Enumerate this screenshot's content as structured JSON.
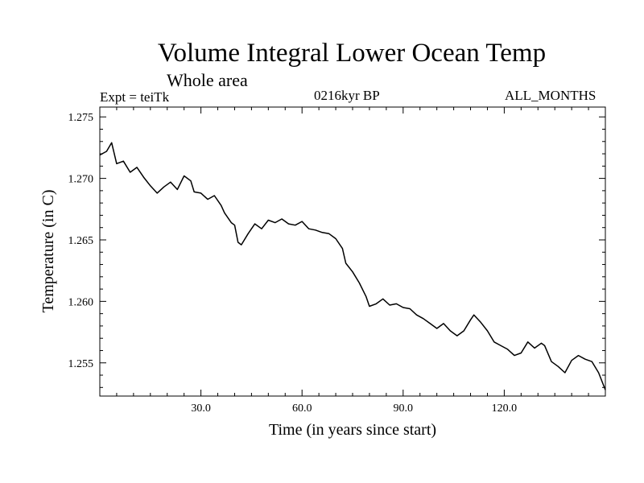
{
  "chart_data": {
    "type": "line",
    "title": "Volume Integral Lower Ocean Temp",
    "subtitle": "Whole area",
    "annotations": {
      "left": "Expt = teiTk",
      "center": "0216kyr BP",
      "right": "ALL_MONTHS"
    },
    "xlabel": "Time (in years since start)",
    "ylabel": "Temperature (in C)",
    "xlim": [
      0,
      150
    ],
    "ylim": [
      1.2523,
      1.2758
    ],
    "xticks": [
      30,
      60,
      90,
      120
    ],
    "xtick_labels": [
      "30.0",
      "60.0",
      "90.0",
      "120.0"
    ],
    "yticks": [
      1.255,
      1.26,
      1.265,
      1.27,
      1.275
    ],
    "ytick_labels": [
      "1.255",
      "1.260",
      "1.265",
      "1.270",
      "1.275"
    ],
    "grid": false,
    "series": [
      {
        "name": "Temperature",
        "color": "#000000",
        "x": [
          0,
          2,
          3.5,
          5,
          7,
          9,
          11,
          13,
          15,
          17,
          19,
          21,
          23,
          25,
          27,
          28,
          30,
          32,
          34,
          36,
          37,
          39,
          40,
          41,
          42,
          44,
          46,
          48,
          50,
          52,
          54,
          56,
          58,
          60,
          62,
          64,
          66,
          68,
          70,
          72,
          73,
          75,
          77,
          79,
          80,
          82,
          84,
          86,
          88,
          90,
          92,
          94,
          96,
          98,
          100,
          102,
          104,
          106,
          108,
          110,
          111,
          113,
          115,
          117,
          119,
          121,
          123,
          125,
          127,
          129,
          131,
          132,
          134,
          136,
          138,
          140,
          142,
          144,
          146,
          148,
          150
        ],
        "y": [
          1.2719,
          1.2722,
          1.2729,
          1.2712,
          1.2714,
          1.2705,
          1.2709,
          1.2701,
          1.2694,
          1.2688,
          1.2693,
          1.2697,
          1.2691,
          1.2702,
          1.2698,
          1.2689,
          1.2688,
          1.2683,
          1.2686,
          1.2678,
          1.2672,
          1.2664,
          1.2662,
          1.2648,
          1.2646,
          1.2655,
          1.2663,
          1.2659,
          1.2666,
          1.2664,
          1.2667,
          1.2663,
          1.2662,
          1.2665,
          1.2659,
          1.2658,
          1.2656,
          1.2655,
          1.2651,
          1.2643,
          1.2631,
          1.2624,
          1.2615,
          1.2604,
          1.2596,
          1.2598,
          1.2602,
          1.2597,
          1.2598,
          1.2595,
          1.2594,
          1.2589,
          1.2586,
          1.2582,
          1.2578,
          1.2582,
          1.2576,
          1.2572,
          1.2576,
          1.2585,
          1.2589,
          1.2583,
          1.2576,
          1.2567,
          1.2564,
          1.2561,
          1.2556,
          1.2558,
          1.2567,
          1.2562,
          1.2566,
          1.2564,
          1.2551,
          1.2547,
          1.2542,
          1.2552,
          1.2556,
          1.2553,
          1.2551,
          1.2542,
          1.2528
        ]
      }
    ]
  }
}
